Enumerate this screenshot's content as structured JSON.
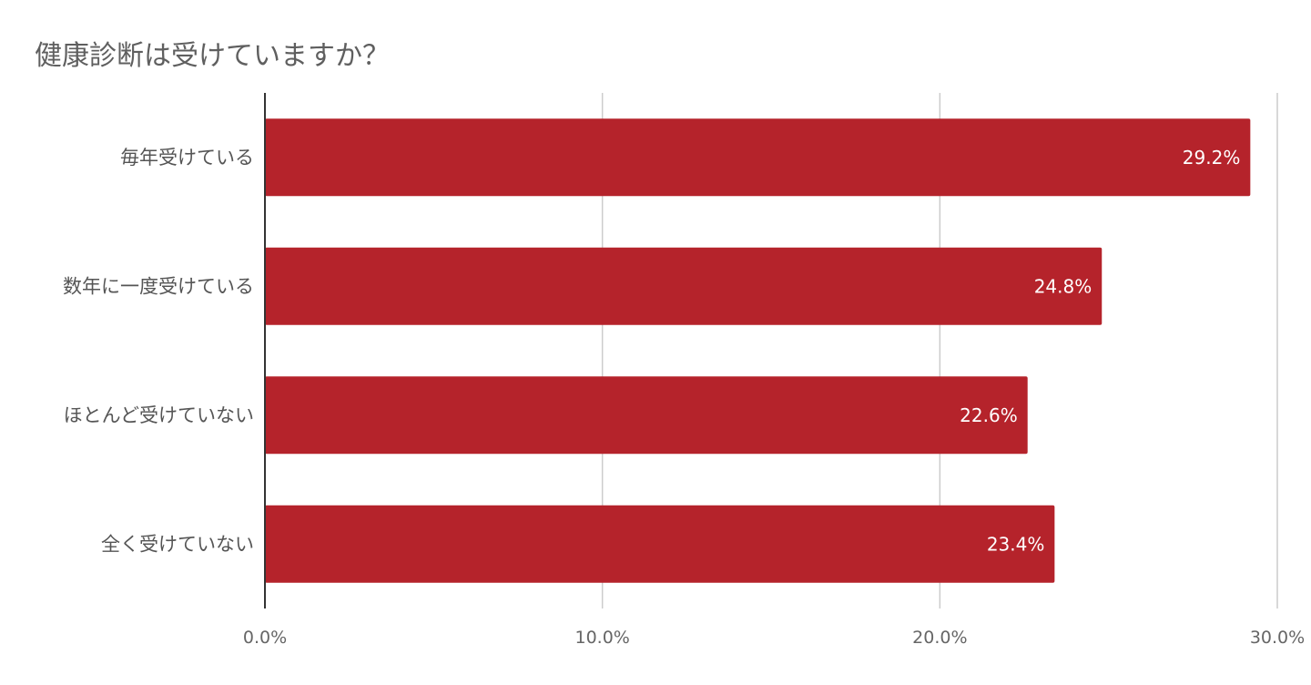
{
  "chart_data": {
    "type": "bar",
    "orientation": "horizontal",
    "title": "健康診断は受けていますか？",
    "categories": [
      "毎年受けている",
      "数年に一度受けている",
      "ほとんど受けていない",
      "全く受けていない"
    ],
    "values": [
      29.2,
      24.8,
      22.6,
      23.4
    ],
    "value_labels": [
      "29.2%",
      "24.8%",
      "22.6%",
      "23.4%"
    ],
    "xlim": [
      0,
      30
    ],
    "x_ticks": [
      0,
      10,
      20,
      30
    ],
    "x_tick_labels": [
      "0.0%",
      "10.0%",
      "20.0%",
      "30.0%"
    ],
    "xlabel": "",
    "ylabel": "",
    "grid": "vertical",
    "legend": "none",
    "colors": {
      "bar": "#b5232b",
      "grid": "#cccccc",
      "axis": "#333333"
    }
  }
}
